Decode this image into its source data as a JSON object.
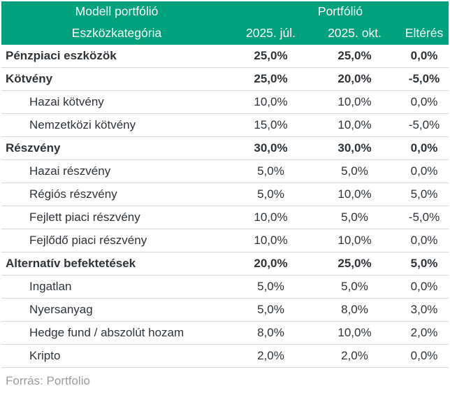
{
  "source": "Forrás: Portfolio",
  "colors": {
    "header_bg": "#00a17c",
    "header_text": "#ffffff",
    "body_text": "#2e3338",
    "row_border": "#d9d9d9",
    "source_text": "#9c9c9c"
  },
  "chart_data": {
    "type": "table",
    "title": "Modell portfólió",
    "column_groups": [
      {
        "label": "Modell portfólió",
        "span": 1
      },
      {
        "label": "Portfólió",
        "span": 3
      }
    ],
    "columns": [
      "Eszközkategória",
      "2025. júl.",
      "2025. okt.",
      "Eltérés"
    ],
    "rows": [
      {
        "category": "Pénzpiaci eszközök",
        "emphasis": true,
        "jul": "25,0%",
        "okt": "25,0%",
        "elteres": "0,0%",
        "jul_num": 25.0,
        "okt_num": 25.0,
        "elteres_num": 0.0
      },
      {
        "category": "Kötvény",
        "emphasis": true,
        "jul": "25,0%",
        "okt": "20,0%",
        "elteres": "-5,0%",
        "jul_num": 25.0,
        "okt_num": 20.0,
        "elteres_num": -5.0
      },
      {
        "category": "Hazai kötvény",
        "emphasis": false,
        "jul": "10,0%",
        "okt": "10,0%",
        "elteres": "0,0%",
        "jul_num": 10.0,
        "okt_num": 10.0,
        "elteres_num": 0.0
      },
      {
        "category": "Nemzetközi kötvény",
        "emphasis": false,
        "jul": "15,0%",
        "okt": "10,0%",
        "elteres": "-5,0%",
        "jul_num": 15.0,
        "okt_num": 10.0,
        "elteres_num": -5.0
      },
      {
        "category": "Részvény",
        "emphasis": true,
        "jul": "30,0%",
        "okt": "30,0%",
        "elteres": "0,0%",
        "jul_num": 30.0,
        "okt_num": 30.0,
        "elteres_num": 0.0
      },
      {
        "category": "Hazai részvény",
        "emphasis": false,
        "jul": "5,0%",
        "okt": "5,0%",
        "elteres": "0,0%",
        "jul_num": 5.0,
        "okt_num": 5.0,
        "elteres_num": 0.0
      },
      {
        "category": "Régiós részvény",
        "emphasis": false,
        "jul": "5,0%",
        "okt": "10,0%",
        "elteres": "5,0%",
        "jul_num": 5.0,
        "okt_num": 10.0,
        "elteres_num": 5.0
      },
      {
        "category": "Fejlett piaci részvény",
        "emphasis": false,
        "jul": "10,0%",
        "okt": "5,0%",
        "elteres": "-5,0%",
        "jul_num": 10.0,
        "okt_num": 5.0,
        "elteres_num": -5.0
      },
      {
        "category": "Fejlődő piaci részvény",
        "emphasis": false,
        "jul": "10,0%",
        "okt": "10,0%",
        "elteres": "0,0%",
        "jul_num": 10.0,
        "okt_num": 10.0,
        "elteres_num": 0.0
      },
      {
        "category": "Alternatív befektetések",
        "emphasis": true,
        "jul": "20,0%",
        "okt": "25,0%",
        "elteres": "5,0%",
        "jul_num": 20.0,
        "okt_num": 25.0,
        "elteres_num": 5.0
      },
      {
        "category": "Ingatlan",
        "emphasis": false,
        "jul": "5,0%",
        "okt": "5,0%",
        "elteres": "0,0%",
        "jul_num": 5.0,
        "okt_num": 5.0,
        "elteres_num": 0.0
      },
      {
        "category": "Nyersanyag",
        "emphasis": false,
        "jul": "5,0%",
        "okt": "8,0%",
        "elteres": "3,0%",
        "jul_num": 5.0,
        "okt_num": 8.0,
        "elteres_num": 3.0
      },
      {
        "category": "Hedge fund / abszolút hozam",
        "emphasis": false,
        "jul": "8,0%",
        "okt": "10,0%",
        "elteres": "2,0%",
        "jul_num": 8.0,
        "okt_num": 10.0,
        "elteres_num": 2.0
      },
      {
        "category": "Kripto",
        "emphasis": false,
        "jul": "2,0%",
        "okt": "2,0%",
        "elteres": "0,0%",
        "jul_num": 2.0,
        "okt_num": 2.0,
        "elteres_num": 0.0
      }
    ]
  }
}
